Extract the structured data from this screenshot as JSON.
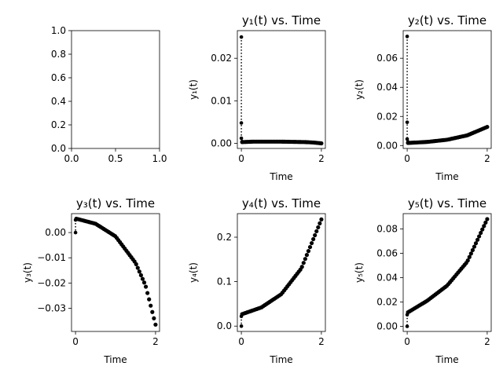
{
  "chart_data": [
    {
      "type": "scatter",
      "title": "",
      "xlabel": "",
      "ylabel": "",
      "xlim": [
        0,
        1
      ],
      "ylim": [
        0,
        1
      ],
      "xticks": [
        0,
        0.5,
        1
      ],
      "yticks": [
        0,
        0.2,
        0.4,
        0.6,
        0.8,
        1
      ],
      "xtick_labels": [
        "0.0",
        "0.5",
        "1.0"
      ],
      "ytick_labels": [
        "0.0",
        "0.2",
        "0.4",
        "0.6",
        "0.8",
        "1.0"
      ],
      "series": []
    },
    {
      "type": "scatter",
      "title": "y₁(t) vs. Time",
      "xlabel": "Time",
      "ylabel": "y₁(t)",
      "xlim": [
        -0.1,
        2.1
      ],
      "ylim": [
        -0.0012,
        0.0265
      ],
      "xticks": [
        0,
        2
      ],
      "yticks": [
        0,
        0.01,
        0.02
      ],
      "xtick_labels": [
        "0",
        "2"
      ],
      "ytick_labels": [
        "0.00",
        "0.01",
        "0.02"
      ],
      "initial_points": [
        [
          0,
          0.025
        ],
        [
          0,
          0.0048
        ],
        [
          0,
          0.0012
        ],
        [
          0.02,
          0.0004
        ]
      ],
      "curve": {
        "x0": 0.02,
        "x1": 2.0,
        "count": 50,
        "values": [
          [
            0.02,
            0.0003
          ],
          [
            0.3,
            0.0004
          ],
          [
            1.0,
            0.0004
          ],
          [
            1.6,
            0.0003
          ],
          [
            1.8,
            0.0002
          ],
          [
            2.0,
            0.0
          ]
        ]
      },
      "color": "#000000"
    },
    {
      "type": "scatter",
      "title": "y₂(t) vs. Time",
      "xlabel": "Time",
      "ylabel": "y₂(t)",
      "xlim": [
        -0.1,
        2.1
      ],
      "ylim": [
        -0.002,
        0.079
      ],
      "xticks": [
        0,
        2
      ],
      "yticks": [
        0,
        0.02,
        0.04,
        0.06
      ],
      "xtick_labels": [
        "0",
        "2"
      ],
      "ytick_labels": [
        "0.00",
        "0.02",
        "0.04",
        "0.06"
      ],
      "initial_points": [
        [
          0,
          0.075
        ],
        [
          0,
          0.016
        ],
        [
          0,
          0.0045
        ],
        [
          0.02,
          0.0025
        ]
      ],
      "curve": {
        "x0": 0.02,
        "x1": 2.0,
        "count": 50,
        "values": [
          [
            0.02,
            0.0018
          ],
          [
            0.5,
            0.0025
          ],
          [
            1.0,
            0.004
          ],
          [
            1.5,
            0.007
          ],
          [
            2.0,
            0.0128
          ]
        ]
      },
      "color": "#000000"
    },
    {
      "type": "scatter",
      "title": "y₃(t) vs. Time",
      "xlabel": "Time",
      "ylabel": "y₃(t)",
      "xlim": [
        -0.1,
        2.1
      ],
      "ylim": [
        -0.0392,
        0.0075
      ],
      "xticks": [
        0,
        2
      ],
      "yticks": [
        0,
        -0.01,
        -0.02,
        -0.03
      ],
      "xtick_labels": [
        "0",
        "2"
      ],
      "ytick_labels": [
        "0.00",
        "−0.01",
        "−0.02",
        "−0.03"
      ],
      "initial_points": [
        [
          0,
          0.0
        ],
        [
          0,
          0.005
        ],
        [
          0.02,
          0.0055
        ]
      ],
      "curve": {
        "x0": 0.02,
        "x1": 2.0,
        "count": 50,
        "values": [
          [
            0.02,
            0.0055
          ],
          [
            0.5,
            0.0035
          ],
          [
            1.0,
            -0.0015
          ],
          [
            1.5,
            -0.012
          ],
          [
            1.75,
            -0.021
          ],
          [
            2.0,
            -0.0365
          ]
        ]
      },
      "color": "#000000"
    },
    {
      "type": "scatter",
      "title": "y₄(t) vs. Time",
      "xlabel": "Time",
      "ylabel": "y₄(t)",
      "xlim": [
        -0.1,
        2.1
      ],
      "ylim": [
        -0.012,
        0.253
      ],
      "xticks": [
        0,
        2
      ],
      "yticks": [
        0,
        0.1,
        0.2
      ],
      "xtick_labels": [
        "0",
        "2"
      ],
      "ytick_labels": [
        "0.0",
        "0.1",
        "0.2"
      ],
      "initial_points": [
        [
          0,
          0.0
        ],
        [
          0,
          0.022
        ],
        [
          0.02,
          0.027
        ]
      ],
      "curve": {
        "x0": 0.02,
        "x1": 2.0,
        "count": 50,
        "values": [
          [
            0.02,
            0.027
          ],
          [
            0.5,
            0.042
          ],
          [
            1.0,
            0.072
          ],
          [
            1.5,
            0.13
          ],
          [
            2.0,
            0.24
          ]
        ]
      },
      "color": "#000000"
    },
    {
      "type": "scatter",
      "title": "y₅(t) vs. Time",
      "xlabel": "Time",
      "ylabel": "y₅(t)",
      "xlim": [
        -0.1,
        2.1
      ],
      "ylim": [
        -0.0042,
        0.0925
      ],
      "xticks": [
        0,
        2
      ],
      "yticks": [
        0,
        0.02,
        0.04,
        0.06,
        0.08
      ],
      "xtick_labels": [
        "0",
        "2"
      ],
      "ytick_labels": [
        "0.00",
        "0.02",
        "0.04",
        "0.06",
        "0.08"
      ],
      "initial_points": [
        [
          0,
          0.0
        ],
        [
          0,
          0.0095
        ],
        [
          0.02,
          0.0115
        ]
      ],
      "curve": {
        "x0": 0.02,
        "x1": 2.0,
        "count": 50,
        "values": [
          [
            0.02,
            0.0115
          ],
          [
            0.5,
            0.021
          ],
          [
            1.0,
            0.0335
          ],
          [
            1.5,
            0.053
          ],
          [
            2.0,
            0.088
          ]
        ]
      },
      "color": "#000000"
    }
  ]
}
